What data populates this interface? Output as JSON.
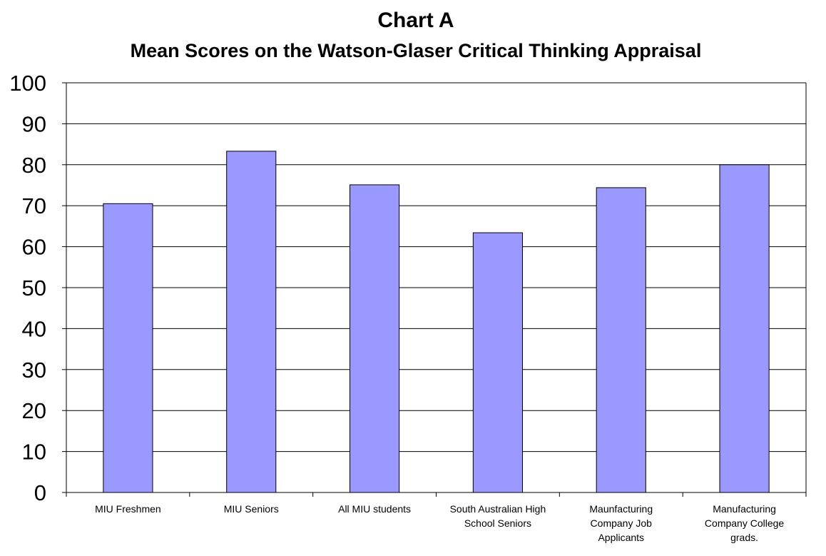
{
  "chart_data": {
    "type": "bar",
    "title": "Chart A",
    "subtitle": "Mean Scores on the Watson-Glaser Critical Thinking Appraisal",
    "xlabel": "",
    "ylabel": "",
    "ylim": [
      0,
      100
    ],
    "y_ticks": [
      "0",
      "10",
      "20",
      "30",
      "40",
      "50",
      "60",
      "70",
      "80",
      "90",
      "100"
    ],
    "grid": true,
    "legend": "none",
    "categories": [
      [
        "MIU Freshmen"
      ],
      [
        "MIU Seniors"
      ],
      [
        "All MIU students"
      ],
      [
        "South Australian High",
        "School Seniors"
      ],
      [
        "Maunfacturing",
        "Company Job",
        "Applicants"
      ],
      [
        "Manufacturing",
        "Company College",
        "grads."
      ]
    ],
    "values": [
      70.5,
      83.3,
      75.1,
      63.4,
      74.4,
      80.0
    ],
    "colors": {
      "bar_fill": "#9999ff",
      "bar_stroke": "#000000",
      "gridline": "#000000",
      "background": "#ffffff"
    }
  }
}
